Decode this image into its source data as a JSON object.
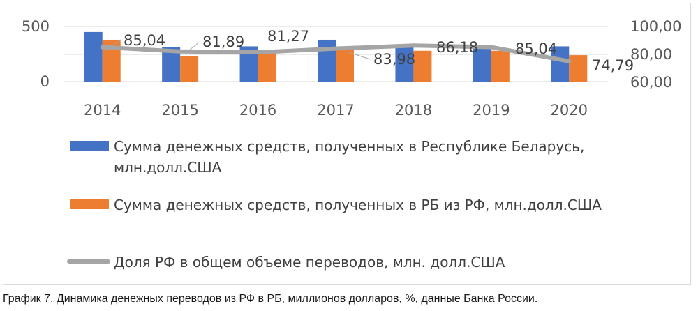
{
  "caption": "График 7. Динамика денежных переводов из РФ в РБ, миллионов долларов, %, данные Банка России.",
  "colors": {
    "series_blue": "#4472C4",
    "series_orange": "#ED7D31",
    "series_gray": "#A5A5A5"
  },
  "chart_data": {
    "type": "bar",
    "categories": [
      "2014",
      "2015",
      "2016",
      "2017",
      "2018",
      "2019",
      "2020"
    ],
    "series": [
      {
        "name": "Сумма денежных средств, полученных в Республике Беларусь, млн.долл.США",
        "type": "bar",
        "axis": "left",
        "values": [
          450,
          310,
          320,
          380,
          330,
          330,
          320
        ]
      },
      {
        "name": "Сумма денежных средств, полученных в РБ из РФ, млн.долл.США",
        "type": "bar",
        "axis": "left",
        "values": [
          380,
          230,
          260,
          320,
          280,
          280,
          240
        ]
      },
      {
        "name": "Доля РФ в общем объеме переводов, млн. долл.США",
        "type": "line",
        "axis": "right",
        "values": [
          85.04,
          81.89,
          81.27,
          83.98,
          86.18,
          85.04,
          74.79
        ],
        "labels": [
          "85,04",
          "81,89",
          "81,27",
          "83,98",
          "86,18",
          "85,04",
          "74,79"
        ]
      }
    ],
    "left_axis": {
      "ticks": [
        "500",
        "0"
      ],
      "ylim": [
        0,
        500
      ]
    },
    "right_axis": {
      "ticks": [
        "100,00",
        "80,00",
        "60,00"
      ],
      "ylim": [
        60,
        100
      ]
    },
    "legend_position": "bottom",
    "legend_lines": [
      [
        "Сумма денежных средств, полученных в Республике Беларусь,",
        "млн.долл.США"
      ],
      [
        "Сумма денежных средств, полученных в РБ из РФ, млн.долл.США"
      ],
      [
        "Доля РФ в общем объеме переводов, млн. долл.США"
      ]
    ],
    "grid": true
  }
}
